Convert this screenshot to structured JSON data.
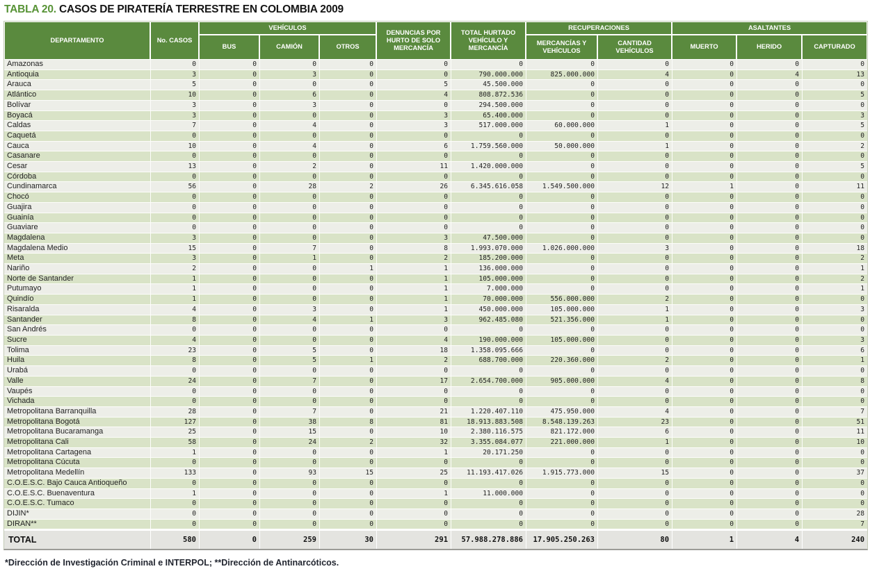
{
  "title": {
    "prefix": "TABLA 20.",
    "main": "CASOS DE PIRATERÍA TERRESTRE EN COLOMBIA 2009"
  },
  "columns": {
    "departamento": "DEPARTAMENTO",
    "no_casos": "No. CASOS",
    "vehiculos_group": "VEHÍCULOS",
    "bus": "BUS",
    "camion": "CAMIÓN",
    "otros": "OTROS",
    "denuncias": "DENUNCIAS POR HURTO DE SOLO MERCANCÍA",
    "total_hurtado": "TOTAL HURTADO VEHÍCULO Y MERCANCÍA",
    "recuperaciones_group": "RECUPERACIONES",
    "mercancias_vehiculos": "MERCANCÍAS Y VEHÍCULOS",
    "cantidad_vehiculos": "CANTIDAD VEHÍCULOS",
    "asaltantes_group": "ASALTANTES",
    "muerto": "MUERTO",
    "herido": "HERIDO",
    "capturado": "CAPTURADO"
  },
  "rows": [
    {
      "name": "Amazonas",
      "values": [
        "0",
        "0",
        "0",
        "0",
        "0",
        "0",
        "0",
        "0",
        "0",
        "0",
        "0"
      ]
    },
    {
      "name": "Antioquia",
      "values": [
        "3",
        "0",
        "3",
        "0",
        "0",
        "790.000.000",
        "825.000.000",
        "4",
        "0",
        "4",
        "13"
      ]
    },
    {
      "name": "Arauca",
      "values": [
        "5",
        "0",
        "0",
        "0",
        "5",
        "45.500.000",
        "0",
        "0",
        "0",
        "0",
        "0"
      ]
    },
    {
      "name": "Atlántico",
      "values": [
        "10",
        "0",
        "6",
        "0",
        "4",
        "808.872.536",
        "0",
        "0",
        "0",
        "0",
        "5"
      ]
    },
    {
      "name": "Bolívar",
      "values": [
        "3",
        "0",
        "3",
        "0",
        "0",
        "294.500.000",
        "0",
        "0",
        "0",
        "0",
        "0"
      ]
    },
    {
      "name": "Boyacá",
      "values": [
        "3",
        "0",
        "0",
        "0",
        "3",
        "65.400.000",
        "0",
        "0",
        "0",
        "0",
        "3"
      ]
    },
    {
      "name": "Caldas",
      "values": [
        "7",
        "0",
        "4",
        "0",
        "3",
        "517.000.000",
        "60.000.000",
        "1",
        "0",
        "0",
        "5"
      ]
    },
    {
      "name": "Caquetá",
      "values": [
        "0",
        "0",
        "0",
        "0",
        "0",
        "0",
        "0",
        "0",
        "0",
        "0",
        "0"
      ]
    },
    {
      "name": "Cauca",
      "values": [
        "10",
        "0",
        "4",
        "0",
        "6",
        "1.759.560.000",
        "50.000.000",
        "1",
        "0",
        "0",
        "2"
      ]
    },
    {
      "name": "Casanare",
      "values": [
        "0",
        "0",
        "0",
        "0",
        "0",
        "0",
        "0",
        "0",
        "0",
        "0",
        "0"
      ]
    },
    {
      "name": "Cesar",
      "values": [
        "13",
        "0",
        "2",
        "0",
        "11",
        "1.420.000.000",
        "0",
        "0",
        "0",
        "0",
        "5"
      ]
    },
    {
      "name": "Córdoba",
      "values": [
        "0",
        "0",
        "0",
        "0",
        "0",
        "0",
        "0",
        "0",
        "0",
        "0",
        "0"
      ]
    },
    {
      "name": "Cundinamarca",
      "values": [
        "56",
        "0",
        "28",
        "2",
        "26",
        "6.345.616.058",
        "1.549.500.000",
        "12",
        "1",
        "0",
        "11"
      ]
    },
    {
      "name": "Chocó",
      "values": [
        "0",
        "0",
        "0",
        "0",
        "0",
        "0",
        "0",
        "0",
        "0",
        "0",
        "0"
      ]
    },
    {
      "name": "Guajira",
      "values": [
        "0",
        "0",
        "0",
        "0",
        "0",
        "0",
        "0",
        "0",
        "0",
        "0",
        "0"
      ]
    },
    {
      "name": "Guainía",
      "values": [
        "0",
        "0",
        "0",
        "0",
        "0",
        "0",
        "0",
        "0",
        "0",
        "0",
        "0"
      ]
    },
    {
      "name": "Guaviare",
      "values": [
        "0",
        "0",
        "0",
        "0",
        "0",
        "0",
        "0",
        "0",
        "0",
        "0",
        "0"
      ]
    },
    {
      "name": "Magdalena",
      "values": [
        "3",
        "0",
        "0",
        "0",
        "3",
        "47.500.000",
        "0",
        "0",
        "0",
        "0",
        "0"
      ]
    },
    {
      "name": "Magdalena Medio",
      "values": [
        "15",
        "0",
        "7",
        "0",
        "8",
        "1.993.070.000",
        "1.026.000.000",
        "3",
        "0",
        "0",
        "18"
      ]
    },
    {
      "name": "Meta",
      "values": [
        "3",
        "0",
        "1",
        "0",
        "2",
        "185.200.000",
        "0",
        "0",
        "0",
        "0",
        "2"
      ]
    },
    {
      "name": "Nariño",
      "values": [
        "2",
        "0",
        "0",
        "1",
        "1",
        "136.000.000",
        "0",
        "0",
        "0",
        "0",
        "1"
      ]
    },
    {
      "name": "Norte de Santander",
      "values": [
        "1",
        "0",
        "0",
        "0",
        "1",
        "105.000.000",
        "0",
        "0",
        "0",
        "0",
        "2"
      ]
    },
    {
      "name": "Putumayo",
      "values": [
        "1",
        "0",
        "0",
        "0",
        "1",
        "7.000.000",
        "0",
        "0",
        "0",
        "0",
        "1"
      ]
    },
    {
      "name": "Quindío",
      "values": [
        "1",
        "0",
        "0",
        "0",
        "1",
        "70.000.000",
        "556.000.000",
        "2",
        "0",
        "0",
        "0"
      ]
    },
    {
      "name": "Risaralda",
      "values": [
        "4",
        "0",
        "3",
        "0",
        "1",
        "450.000.000",
        "105.000.000",
        "1",
        "0",
        "0",
        "3"
      ]
    },
    {
      "name": "Santander",
      "values": [
        "8",
        "0",
        "4",
        "1",
        "3",
        "962.485.080",
        "521.356.000",
        "1",
        "0",
        "0",
        "0"
      ]
    },
    {
      "name": "San Andrés",
      "values": [
        "0",
        "0",
        "0",
        "0",
        "0",
        "0",
        "0",
        "0",
        "0",
        "0",
        "0"
      ]
    },
    {
      "name": "Sucre",
      "values": [
        "4",
        "0",
        "0",
        "0",
        "4",
        "190.000.000",
        "105.000.000",
        "0",
        "0",
        "0",
        "3"
      ]
    },
    {
      "name": "Tolima",
      "values": [
        "23",
        "0",
        "5",
        "0",
        "18",
        "1.358.095.666",
        "0",
        "0",
        "0",
        "0",
        "6"
      ]
    },
    {
      "name": "Huila",
      "values": [
        "8",
        "0",
        "5",
        "1",
        "2",
        "688.700.000",
        "220.360.000",
        "2",
        "0",
        "0",
        "1"
      ]
    },
    {
      "name": "Urabá",
      "values": [
        "0",
        "0",
        "0",
        "0",
        "0",
        "0",
        "0",
        "0",
        "0",
        "0",
        "0"
      ]
    },
    {
      "name": "Valle",
      "values": [
        "24",
        "0",
        "7",
        "0",
        "17",
        "2.654.700.000",
        "905.000.000",
        "4",
        "0",
        "0",
        "8"
      ]
    },
    {
      "name": "Vaupés",
      "values": [
        "0",
        "0",
        "0",
        "0",
        "0",
        "0",
        "0",
        "0",
        "0",
        "0",
        "0"
      ]
    },
    {
      "name": "Vichada",
      "values": [
        "0",
        "0",
        "0",
        "0",
        "0",
        "0",
        "0",
        "0",
        "0",
        "0",
        "0"
      ]
    },
    {
      "name": "Metropolitana Barranquilla",
      "values": [
        "28",
        "0",
        "7",
        "0",
        "21",
        "1.220.407.110",
        "475.950.000",
        "4",
        "0",
        "0",
        "7"
      ]
    },
    {
      "name": "Metropolitana Bogotá",
      "values": [
        "127",
        "0",
        "38",
        "8",
        "81",
        "18.913.883.508",
        "8.548.139.263",
        "23",
        "0",
        "0",
        "51"
      ]
    },
    {
      "name": "Metropolitana Bucaramanga",
      "values": [
        "25",
        "0",
        "15",
        "0",
        "10",
        "2.380.116.575",
        "821.172.000",
        "6",
        "0",
        "0",
        "11"
      ]
    },
    {
      "name": "Metropolitana Cali",
      "values": [
        "58",
        "0",
        "24",
        "2",
        "32",
        "3.355.084.077",
        "221.000.000",
        "1",
        "0",
        "0",
        "10"
      ]
    },
    {
      "name": "Metropolitana Cartagena",
      "values": [
        "1",
        "0",
        "0",
        "0",
        "1",
        "20.171.250",
        "0",
        "0",
        "0",
        "0",
        "0"
      ]
    },
    {
      "name": "Metropolitana Cúcuta",
      "values": [
        "0",
        "0",
        "0",
        "0",
        "0",
        "0",
        "0",
        "0",
        "0",
        "0",
        "0"
      ]
    },
    {
      "name": "Metropolitana Medellín",
      "values": [
        "133",
        "0",
        "93",
        "15",
        "25",
        "11.193.417.026",
        "1.915.773.000",
        "15",
        "0",
        "0",
        "37"
      ]
    },
    {
      "name": "C.O.E.S.C. Bajo Cauca Antioqueño",
      "values": [
        "0",
        "0",
        "0",
        "0",
        "0",
        "0",
        "0",
        "0",
        "0",
        "0",
        "0"
      ]
    },
    {
      "name": "C.O.E.S.C. Buenaventura",
      "values": [
        "1",
        "0",
        "0",
        "0",
        "1",
        "11.000.000",
        "0",
        "0",
        "0",
        "0",
        "0"
      ]
    },
    {
      "name": "C.O.E.S.C. Tumaco",
      "values": [
        "0",
        "0",
        "0",
        "0",
        "0",
        "0",
        "0",
        "0",
        "0",
        "0",
        "0"
      ]
    },
    {
      "name": "DIJIN*",
      "values": [
        "0",
        "0",
        "0",
        "0",
        "0",
        "0",
        "0",
        "0",
        "0",
        "0",
        "28"
      ]
    },
    {
      "name": "DIRAN**",
      "values": [
        "0",
        "0",
        "0",
        "0",
        "0",
        "0",
        "0",
        "0",
        "0",
        "0",
        "7"
      ]
    }
  ],
  "total": {
    "label": "TOTAL",
    "values": [
      "580",
      "0",
      "259",
      "30",
      "291",
      "57.988.278.886",
      "17.905.250.263",
      "80",
      "1",
      "4",
      "240"
    ]
  },
  "footnote": "*Dirección de Investigación Criminal e INTERPOL; **Dirección de Antinarcóticos.",
  "colors": {
    "header_green": "#5a8a3e",
    "title_green": "#579336",
    "row_light": "#edeee8",
    "row_green": "#d9e3c7",
    "total_row_bg": "#e4e4e0"
  }
}
